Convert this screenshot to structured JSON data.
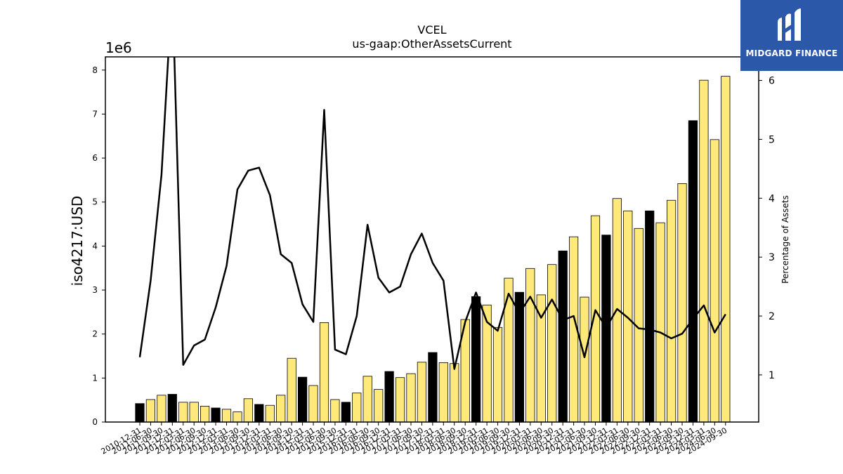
{
  "chart_data": {
    "type": "bar",
    "title_line1": "VCEL",
    "title_line2": "us-gaap:OtherAssetsCurrent",
    "ylabel": "iso4217:USD",
    "y2label": "Percentage of Assets",
    "y_scale_label": "1e6",
    "ylim": [
      0,
      8300000
    ],
    "y2lim": [
      0.2,
      6.4
    ],
    "yticks": [
      0,
      1,
      2,
      3,
      4,
      5,
      6,
      7,
      8
    ],
    "y2ticks": [
      1,
      2,
      3,
      4,
      5,
      6
    ],
    "categories": [
      "2010-12-31",
      "2011-06-30",
      "2011-09-30",
      "2011-12-31",
      "2012-03-31",
      "2012-06-30",
      "2012-09-30",
      "2012-12-31",
      "2013-03-31",
      "2013-06-30",
      "2013-09-30",
      "2013-12-31",
      "2014-03-31",
      "2014-06-30",
      "2014-09-30",
      "2014-12-31",
      "2015-03-31",
      "2015-06-30",
      "2015-09-30",
      "2015-12-31",
      "2016-03-31",
      "2016-06-30",
      "2016-09-30",
      "2016-12-31",
      "2017-03-31",
      "2017-06-30",
      "2017-09-30",
      "2017-12-31",
      "2018-03-31",
      "2018-06-30",
      "2018-09-30",
      "2018-12-31",
      "2019-03-31",
      "2019-06-30",
      "2019-09-30",
      "2019-12-31",
      "2020-03-31",
      "2020-06-30",
      "2020-09-30",
      "2020-12-31",
      "2021-03-31",
      "2021-06-30",
      "2021-09-30",
      "2021-12-31",
      "2022-03-31",
      "2022-06-30",
      "2022-09-30",
      "2022-12-31",
      "2023-03-31",
      "2023-06-30",
      "2023-09-30",
      "2023-12-31",
      "2024-03-31",
      "2024-06-30",
      "2024-09-30"
    ],
    "values": [
      420000,
      510000,
      610000,
      630000,
      450000,
      450000,
      360000,
      320000,
      290000,
      230000,
      530000,
      400000,
      380000,
      610000,
      1450000,
      1020000,
      830000,
      2260000,
      510000,
      450000,
      660000,
      1040000,
      740000,
      1150000,
      1010000,
      1100000,
      1360000,
      1580000,
      1350000,
      1330000,
      2330000,
      2850000,
      2660000,
      2150000,
      3270000,
      2950000,
      3490000,
      2890000,
      3580000,
      3890000,
      4210000,
      2840000,
      4690000,
      4250000,
      5080000,
      4800000,
      4400000,
      4800000,
      4530000,
      5040000,
      5420000,
      6850000,
      7770000,
      6420000,
      7860000
    ],
    "highlight": [
      true,
      false,
      false,
      true,
      false,
      false,
      false,
      true,
      false,
      false,
      false,
      true,
      false,
      false,
      false,
      true,
      false,
      false,
      false,
      true,
      false,
      false,
      false,
      true,
      false,
      false,
      false,
      true,
      false,
      false,
      false,
      true,
      false,
      false,
      false,
      true,
      false,
      false,
      false,
      true,
      false,
      false,
      false,
      true,
      false,
      false,
      false,
      true,
      false,
      false,
      false,
      true,
      false,
      false,
      false
    ],
    "pct_series": [
      1.3,
      2.6,
      4.4,
      7.6,
      1.17,
      1.5,
      1.6,
      2.15,
      2.85,
      4.15,
      4.47,
      4.52,
      4.05,
      3.05,
      2.9,
      2.2,
      1.9,
      5.5,
      1.43,
      1.35,
      2.0,
      3.55,
      2.65,
      2.4,
      2.5,
      3.05,
      3.4,
      2.9,
      2.6,
      1.1,
      1.9,
      2.4,
      1.9,
      1.75,
      2.38,
      2.05,
      2.33,
      1.97,
      2.28,
      1.93,
      2.0,
      1.3,
      2.1,
      1.8,
      2.12,
      1.97,
      1.79,
      1.77,
      1.72,
      1.62,
      1.7,
      1.95,
      2.18,
      1.72,
      2.03
    ],
    "colors": {
      "bar": "#ffe97a",
      "bar_highlight": "#000000",
      "line": "#000000"
    },
    "grid": false,
    "legend": "none"
  },
  "logo": {
    "text": "MIDGARD FINANCE",
    "icon": "midgard-logo-icon",
    "bg": "#2b58a8"
  }
}
